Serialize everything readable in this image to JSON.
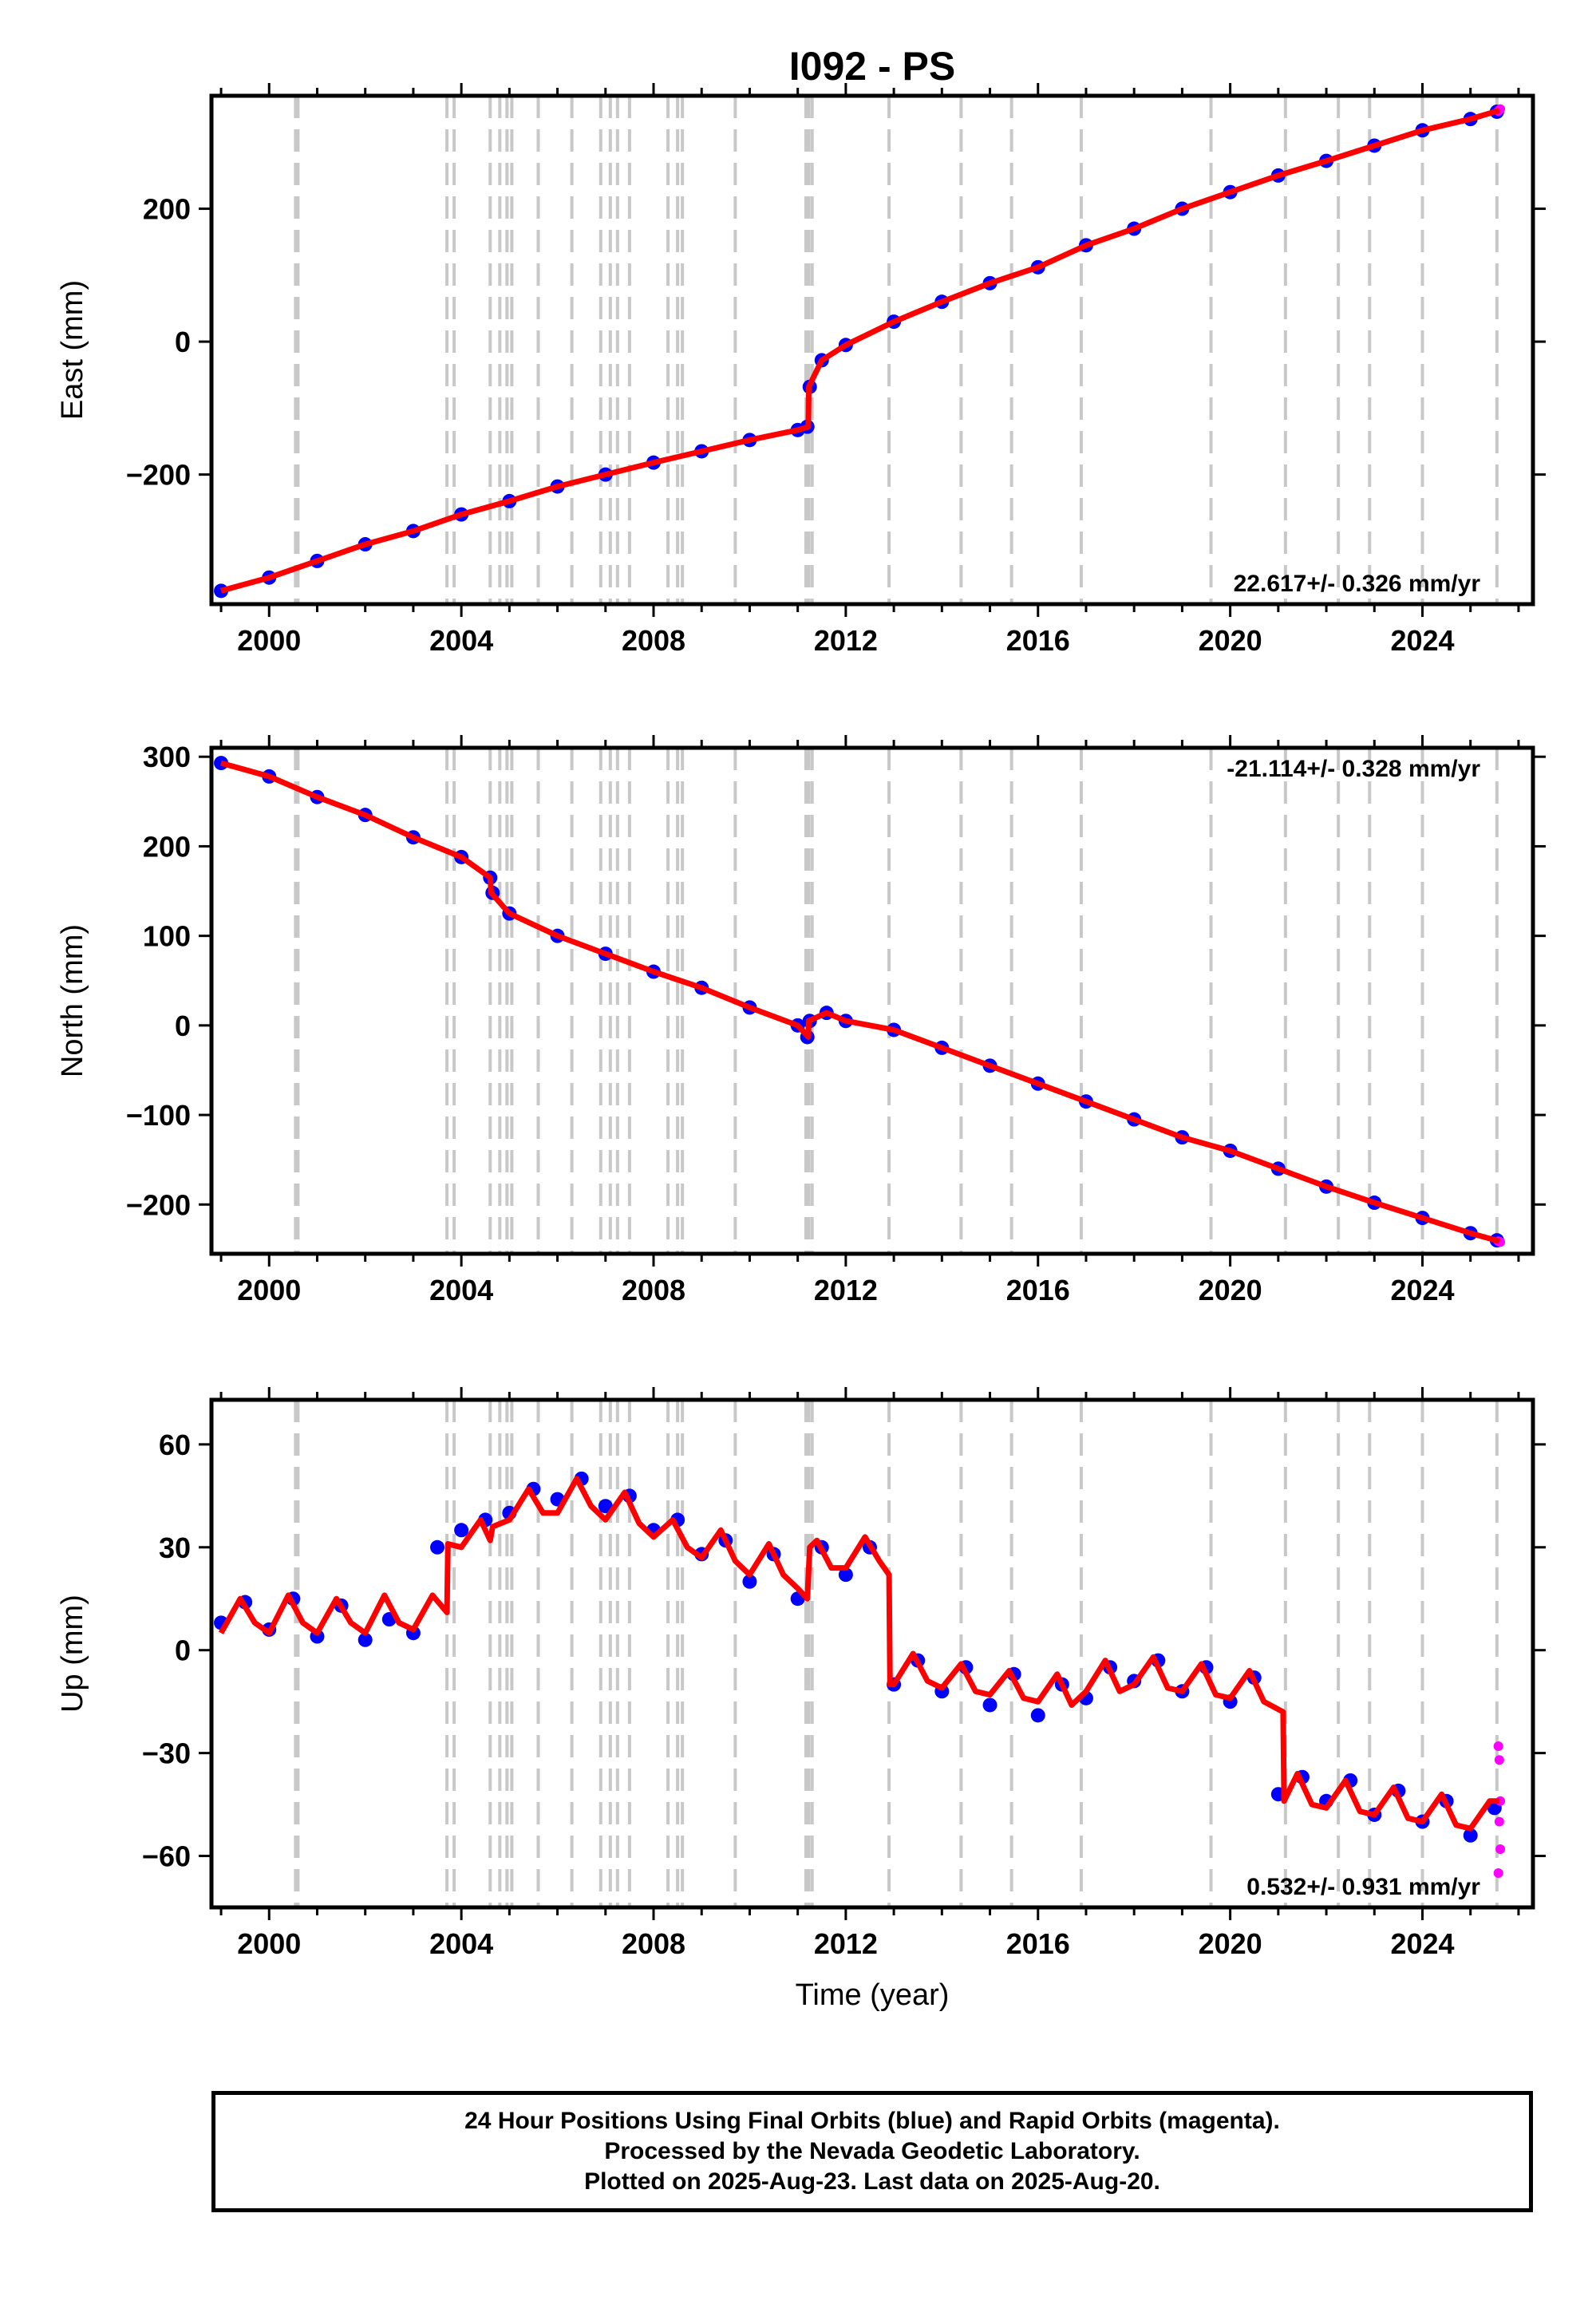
{
  "figure": {
    "title": "I092 - PS",
    "footer_lines": [
      "24 Hour Positions Using Final Orbits (blue) and Rapid Orbits (magenta).",
      "Processed by the Nevada Geodetic Laboratory.",
      "Plotted on 2025-Aug-23. Last data on 2025-Aug-20."
    ]
  },
  "colors": {
    "final_orbits": "#0000ff",
    "rapid_orbits": "#ff00ff",
    "model_fit": "#ff0000",
    "event_lines": "#c8c8c8",
    "axes": "#000000"
  },
  "chart_data": [
    {
      "type": "scatter",
      "id": "east",
      "ylabel": "East (mm)",
      "xlabel": "",
      "xlim": [
        1998.8,
        2026.3
      ],
      "ylim": [
        -395,
        370
      ],
      "xticks": [
        2000,
        2004,
        2008,
        2012,
        2016,
        2020,
        2024
      ],
      "yticks": [
        -200,
        0,
        200
      ],
      "rate_label": "22.617+/- 0.326 mm/yr",
      "rate_position": "bottom-right",
      "series": [
        {
          "name": "Final Orbits (blue)",
          "color": "#0000ff",
          "x": [
            1999.0,
            2000.0,
            2001.0,
            2002.0,
            2003.0,
            2004.0,
            2005.0,
            2006.0,
            2007.0,
            2008.0,
            2009.0,
            2010.0,
            2011.0,
            2011.2,
            2011.25,
            2011.5,
            2012.0,
            2013.0,
            2014.0,
            2015.0,
            2016.0,
            2017.0,
            2018.0,
            2019.0,
            2020.0,
            2021.0,
            2022.0,
            2023.0,
            2024.0,
            2025.0,
            2025.55
          ],
          "y": [
            -375,
            -355,
            -330,
            -305,
            -285,
            -260,
            -240,
            -218,
            -200,
            -182,
            -165,
            -148,
            -133,
            -128,
            -68,
            -28,
            -5,
            30,
            60,
            88,
            112,
            145,
            170,
            200,
            225,
            250,
            272,
            295,
            318,
            335,
            346
          ]
        },
        {
          "name": "Rapid Orbits (magenta)",
          "color": "#ff00ff",
          "x": [
            2025.58,
            2025.62
          ],
          "y": [
            347,
            350
          ]
        }
      ],
      "model_fit": {
        "x": [
          1999.0,
          2000.0,
          2001.0,
          2002.0,
          2003.0,
          2004.0,
          2005.0,
          2006.0,
          2007.0,
          2008.0,
          2009.0,
          2010.0,
          2011.0,
          2011.22,
          2011.23,
          2011.5,
          2012.0,
          2013.0,
          2014.0,
          2015.0,
          2016.0,
          2017.0,
          2018.0,
          2019.0,
          2020.0,
          2021.0,
          2022.0,
          2023.0,
          2024.0,
          2025.0,
          2025.6
        ],
        "y": [
          -375,
          -355,
          -330,
          -305,
          -285,
          -260,
          -240,
          -218,
          -200,
          -182,
          -165,
          -148,
          -133,
          -128,
          -68,
          -28,
          -5,
          30,
          60,
          88,
          112,
          145,
          170,
          200,
          225,
          250,
          272,
          295,
          318,
          335,
          348
        ]
      },
      "event_lines": [
        2000.55,
        2000.6,
        2003.7,
        2003.85,
        2004.6,
        2004.8,
        2004.95,
        2005.05,
        2005.6,
        2006.3,
        2006.9,
        2007.1,
        2007.25,
        2007.5,
        2008.3,
        2008.5,
        2008.6,
        2009.7,
        2011.17,
        2011.23,
        2011.3,
        2012.9,
        2014.4,
        2015.45,
        2016.9,
        2019.6,
        2021.15,
        2022.25,
        2022.9,
        2024.0,
        2025.55
      ]
    },
    {
      "type": "scatter",
      "id": "north",
      "ylabel": "North (mm)",
      "xlabel": "",
      "xlim": [
        1998.8,
        2026.3
      ],
      "ylim": [
        -255,
        310
      ],
      "xticks": [
        2000,
        2004,
        2008,
        2012,
        2016,
        2020,
        2024
      ],
      "yticks": [
        -200,
        -100,
        0,
        100,
        200,
        300
      ],
      "rate_label": "-21.114+/- 0.328 mm/yr",
      "rate_position": "top-right",
      "series": [
        {
          "name": "Final Orbits (blue)",
          "color": "#0000ff",
          "x": [
            1999.0,
            2000.0,
            2001.0,
            2002.0,
            2003.0,
            2004.0,
            2004.6,
            2004.65,
            2005.0,
            2006.0,
            2007.0,
            2008.0,
            2009.0,
            2010.0,
            2011.0,
            2011.2,
            2011.25,
            2011.6,
            2012.0,
            2013.0,
            2014.0,
            2015.0,
            2016.0,
            2017.0,
            2018.0,
            2019.0,
            2020.0,
            2021.0,
            2022.0,
            2023.0,
            2024.0,
            2025.0,
            2025.55
          ],
          "y": [
            293,
            278,
            255,
            235,
            210,
            188,
            165,
            148,
            125,
            100,
            80,
            60,
            42,
            20,
            0,
            -13,
            5,
            14,
            5,
            -5,
            -25,
            -45,
            -65,
            -85,
            -105,
            -125,
            -140,
            -160,
            -180,
            -198,
            -215,
            -232,
            -240
          ]
        },
        {
          "name": "Rapid Orbits (magenta)",
          "color": "#ff00ff",
          "x": [
            2025.58,
            2025.62
          ],
          "y": [
            -241,
            -242
          ]
        }
      ],
      "model_fit": {
        "x": [
          1999.0,
          2000.0,
          2001.0,
          2002.0,
          2003.0,
          2004.0,
          2004.6,
          2004.62,
          2005.0,
          2006.0,
          2007.0,
          2008.0,
          2009.0,
          2010.0,
          2011.0,
          2011.22,
          2011.23,
          2011.6,
          2012.0,
          2013.0,
          2014.0,
          2015.0,
          2016.0,
          2017.0,
          2018.0,
          2019.0,
          2020.0,
          2021.0,
          2022.0,
          2023.0,
          2024.0,
          2025.0,
          2025.6
        ],
        "y": [
          293,
          278,
          255,
          235,
          210,
          188,
          165,
          148,
          125,
          100,
          80,
          60,
          42,
          20,
          0,
          -13,
          5,
          14,
          5,
          -5,
          -25,
          -45,
          -65,
          -85,
          -105,
          -125,
          -140,
          -160,
          -180,
          -198,
          -215,
          -232,
          -241
        ]
      },
      "event_lines": [
        2000.55,
        2000.6,
        2003.7,
        2003.85,
        2004.6,
        2004.8,
        2004.95,
        2005.05,
        2005.6,
        2006.3,
        2006.9,
        2007.1,
        2007.25,
        2007.5,
        2008.3,
        2008.5,
        2008.6,
        2009.7,
        2011.17,
        2011.23,
        2011.3,
        2012.9,
        2014.4,
        2015.45,
        2016.9,
        2019.6,
        2021.15,
        2022.25,
        2022.9,
        2024.0,
        2025.55
      ]
    },
    {
      "type": "scatter",
      "id": "up",
      "ylabel": "Up (mm)",
      "xlabel": "Time (year)",
      "xlim": [
        1998.8,
        2026.3
      ],
      "ylim": [
        -75,
        73
      ],
      "xticks": [
        2000,
        2004,
        2008,
        2012,
        2016,
        2020,
        2024
      ],
      "yticks": [
        -60,
        -30,
        0,
        30,
        60
      ],
      "rate_label": "0.532+/- 0.931 mm/yr",
      "rate_position": "bottom-right",
      "series": [
        {
          "name": "Final Orbits (blue)",
          "color": "#0000ff",
          "x": [
            1999.0,
            1999.5,
            2000.0,
            2000.5,
            2001.0,
            2001.5,
            2002.0,
            2002.5,
            2003.0,
            2003.5,
            2004.0,
            2004.5,
            2005.0,
            2005.5,
            2006.0,
            2006.5,
            2007.0,
            2007.5,
            2008.0,
            2008.5,
            2009.0,
            2009.5,
            2010.0,
            2010.5,
            2011.0,
            2011.5,
            2012.0,
            2012.5,
            2013.0,
            2013.5,
            2014.0,
            2014.5,
            2015.0,
            2015.5,
            2016.0,
            2016.5,
            2017.0,
            2017.5,
            2018.0,
            2018.5,
            2019.0,
            2019.5,
            2020.0,
            2020.5,
            2021.0,
            2021.5,
            2022.0,
            2022.5,
            2023.0,
            2023.5,
            2024.0,
            2024.5,
            2025.0,
            2025.5
          ],
          "y": [
            8,
            14,
            6,
            15,
            4,
            13,
            3,
            9,
            5,
            30,
            35,
            38,
            40,
            47,
            44,
            50,
            42,
            45,
            35,
            38,
            28,
            32,
            20,
            28,
            15,
            30,
            22,
            30,
            -10,
            -3,
            -12,
            -5,
            -16,
            -7,
            -19,
            -10,
            -14,
            -5,
            -9,
            -3,
            -12,
            -5,
            -15,
            -8,
            -42,
            -37,
            -44,
            -38,
            -48,
            -41,
            -50,
            -44,
            -54,
            -46
          ]
        },
        {
          "name": "Rapid Orbits (magenta)",
          "color": "#ff00ff",
          "x": [
            2025.58,
            2025.6,
            2025.62,
            2025.6,
            2025.62,
            2025.58
          ],
          "y": [
            -28,
            -32,
            -44,
            -50,
            -58,
            -65
          ]
        }
      ],
      "model_fit": {
        "x": [
          1999.0,
          1999.4,
          1999.7,
          2000.0,
          2000.4,
          2000.7,
          2001.0,
          2001.4,
          2001.7,
          2002.0,
          2002.4,
          2002.7,
          2003.0,
          2003.4,
          2003.7,
          2003.72,
          2004.0,
          2004.4,
          2004.6,
          2004.65,
          2005.0,
          2005.4,
          2005.7,
          2006.0,
          2006.4,
          2006.7,
          2007.0,
          2007.4,
          2007.7,
          2008.0,
          2008.4,
          2008.7,
          2009.0,
          2009.4,
          2009.7,
          2010.0,
          2010.4,
          2010.7,
          2011.0,
          2011.2,
          2011.25,
          2011.4,
          2011.7,
          2012.0,
          2012.4,
          2012.7,
          2012.9,
          2012.92,
          2013.0,
          2013.4,
          2013.7,
          2014.0,
          2014.4,
          2014.7,
          2015.0,
          2015.4,
          2015.7,
          2016.0,
          2016.4,
          2016.7,
          2017.0,
          2017.4,
          2017.7,
          2018.0,
          2018.4,
          2018.7,
          2019.0,
          2019.4,
          2019.7,
          2020.0,
          2020.4,
          2020.7,
          2021.1,
          2021.12,
          2021.4,
          2021.7,
          2022.0,
          2022.4,
          2022.7,
          2023.0,
          2023.4,
          2023.7,
          2024.0,
          2024.4,
          2024.7,
          2025.0,
          2025.4,
          2025.6
        ],
        "y": [
          5,
          15,
          8,
          5,
          16,
          8,
          5,
          15,
          8,
          5,
          16,
          8,
          6,
          16,
          11,
          31,
          30,
          38,
          32,
          36,
          38,
          47,
          40,
          40,
          50,
          42,
          38,
          46,
          37,
          33,
          38,
          30,
          27,
          35,
          26,
          22,
          31,
          22,
          18,
          15,
          30,
          32,
          24,
          24,
          33,
          26,
          22,
          -10,
          -10,
          -1,
          -9,
          -11,
          -4,
          -12,
          -13,
          -6,
          -14,
          -15,
          -7,
          -16,
          -12,
          -3,
          -12,
          -10,
          -2,
          -11,
          -12,
          -4,
          -13,
          -14,
          -6,
          -15,
          -18,
          -44,
          -36,
          -45,
          -46,
          -38,
          -47,
          -48,
          -40,
          -49,
          -50,
          -42,
          -51,
          -52,
          -44,
          -44
        ]
      },
      "event_lines": [
        2000.55,
        2000.6,
        2003.7,
        2003.85,
        2004.6,
        2004.8,
        2004.95,
        2005.05,
        2005.6,
        2006.3,
        2006.9,
        2007.1,
        2007.25,
        2007.5,
        2008.3,
        2008.5,
        2008.6,
        2009.7,
        2011.17,
        2011.23,
        2011.3,
        2012.9,
        2014.4,
        2015.45,
        2016.9,
        2019.6,
        2021.15,
        2022.25,
        2022.9,
        2024.0,
        2025.55
      ]
    }
  ]
}
